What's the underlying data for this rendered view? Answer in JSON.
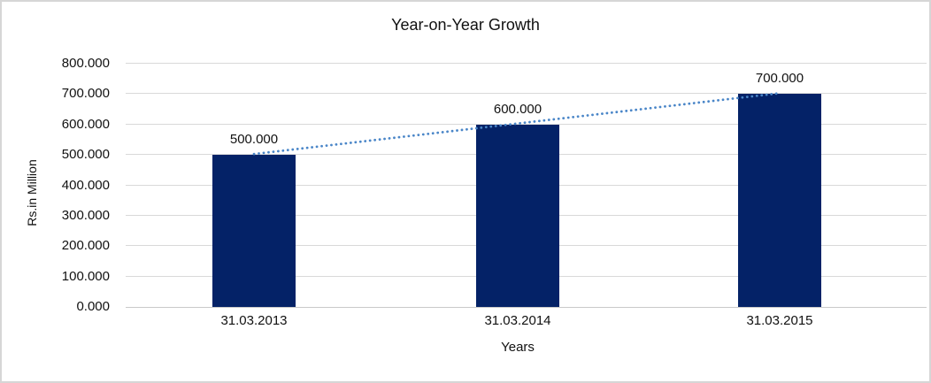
{
  "chart_data": {
    "type": "bar",
    "title": "Year-on-Year Growth",
    "xlabel": "Years",
    "ylabel": "Rs.in Million",
    "categories": [
      "31.03.2013",
      "31.03.2014",
      "31.03.2015"
    ],
    "values": [
      500,
      600,
      700
    ],
    "value_labels": [
      "500.000",
      "600.000",
      "700.000"
    ],
    "ytick_labels": [
      "0.000",
      "100.000",
      "200.000",
      "300.000",
      "400.000",
      "500.000",
      "600.000",
      "700.000",
      "800.000"
    ],
    "ylim": [
      0,
      800
    ],
    "grid": true,
    "legend": "none",
    "bar_color": "#042267",
    "gridline_color": "#d9d9d9",
    "baseline_color": "#c9c9c9",
    "text_color": "#111111",
    "frame_border_color": "#d6d6d6",
    "trendline": {
      "type": "linear",
      "style": "dotted",
      "color": "#4a86c8",
      "from_value": 500,
      "to_value": 700
    }
  }
}
